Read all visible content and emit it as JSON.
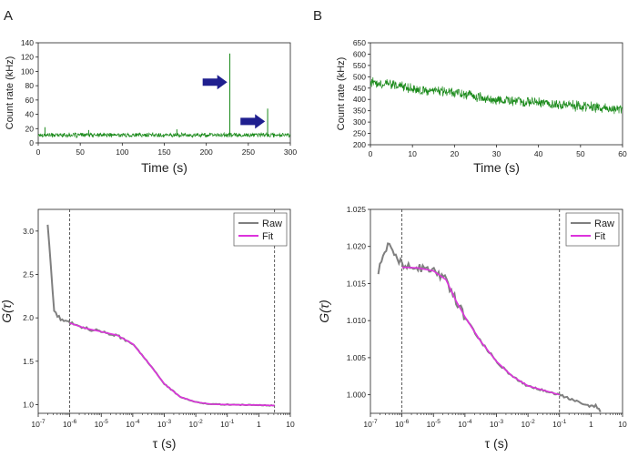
{
  "figure": {
    "panel_labels": [
      "A",
      "B"
    ]
  },
  "chart_data": [
    {
      "id": "A-top",
      "type": "line",
      "xlabel": "Time (s)",
      "ylabel": "Count rate (kHz)",
      "xlim": [
        0,
        300
      ],
      "ylim": [
        0,
        140
      ],
      "xticks": [
        0,
        50,
        100,
        150,
        200,
        250,
        300
      ],
      "yticks": [
        0,
        20,
        40,
        60,
        80,
        100,
        120,
        140
      ],
      "series": [
        {
          "name": "count rate",
          "color": "#1a8a1a",
          "baseline": 11,
          "noise_amplitude": 3,
          "spikes": [
            {
              "t": 8,
              "value": 22
            },
            {
              "t": 60,
              "value": 18
            },
            {
              "t": 165,
              "value": 19
            },
            {
              "t": 228,
              "value": 125
            },
            {
              "t": 273,
              "value": 48
            }
          ]
        }
      ],
      "annotations": [
        {
          "type": "arrow",
          "color": "#1f1f8f",
          "points_to": {
            "t": 226,
            "value": 85
          }
        },
        {
          "type": "arrow",
          "color": "#1f1f8f",
          "points_to": {
            "t": 271,
            "value": 30
          }
        }
      ]
    },
    {
      "id": "B-top",
      "type": "line",
      "xlabel": "Time (s)",
      "ylabel": "Count rate (kHz)",
      "xlim": [
        0,
        60
      ],
      "ylim": [
        200,
        650
      ],
      "xticks": [
        0,
        10,
        20,
        30,
        40,
        50,
        60
      ],
      "yticks": [
        200,
        250,
        300,
        350,
        400,
        450,
        500,
        550,
        600,
        650
      ],
      "series": [
        {
          "name": "count rate",
          "color": "#1a8a1a",
          "trend": [
            [
              0,
              475
            ],
            [
              5,
              470
            ],
            [
              9,
              450
            ],
            [
              12,
              440
            ],
            [
              20,
              430
            ],
            [
              30,
              400
            ],
            [
              40,
              385
            ],
            [
              50,
              370
            ],
            [
              60,
              355
            ]
          ],
          "noise_amplitude": 22
        }
      ]
    },
    {
      "id": "A-bottom",
      "type": "line",
      "x_scale": "log",
      "xlabel": "τ (s)",
      "ylabel": "G(τ)",
      "xlim_log10": [
        -7,
        1
      ],
      "ylim": [
        0.9,
        3.25
      ],
      "xtick_exponents": [
        -7,
        -6,
        -5,
        -4,
        -3,
        -2,
        -1,
        0,
        1
      ],
      "xtick_labels": [
        "10",
        "10",
        "10",
        "10",
        "10",
        "10",
        "10",
        "1",
        "10"
      ],
      "xtick_superscripts": [
        "-7",
        "-6",
        "-5",
        "-4",
        "-3",
        "-2",
        "-1",
        "",
        ""
      ],
      "yticks": [
        1.0,
        1.5,
        2.0,
        2.5,
        3.0
      ],
      "ytick_labels": [
        "1.0",
        "1.5",
        "2.0",
        "2.5",
        "3.0"
      ],
      "vlines_log10": [
        -6,
        0.5
      ],
      "legend": {
        "position": "top-right",
        "entries": [
          "Raw",
          "Fit"
        ]
      },
      "series": [
        {
          "name": "Raw",
          "color": "#7f7f7f",
          "points": [
            [
              -6.7,
              3.08
            ],
            [
              -6.5,
              2.1
            ],
            [
              -6.4,
              2.03
            ],
            [
              -6.25,
              1.97
            ],
            [
              -6.0,
              1.95
            ],
            [
              -5.75,
              1.92
            ],
            [
              -5.5,
              1.88
            ],
            [
              -5.0,
              1.84
            ],
            [
              -4.5,
              1.8
            ],
            [
              -4.0,
              1.7
            ],
            [
              -3.5,
              1.48
            ],
            [
              -3.0,
              1.24
            ],
            [
              -2.5,
              1.09
            ],
            [
              -2.0,
              1.03
            ],
            [
              -1.5,
              1.005
            ],
            [
              -1.0,
              1.0
            ],
            [
              0.0,
              0.995
            ],
            [
              0.5,
              0.99
            ]
          ],
          "noise_amplitude": 0.012
        },
        {
          "name": "Fit",
          "color": "#dd33dd",
          "points": [
            [
              -6.0,
              1.94
            ],
            [
              -5.5,
              1.88
            ],
            [
              -5.0,
              1.84
            ],
            [
              -4.5,
              1.8
            ],
            [
              -4.0,
              1.7
            ],
            [
              -3.5,
              1.48
            ],
            [
              -3.0,
              1.24
            ],
            [
              -2.5,
              1.09
            ],
            [
              -2.0,
              1.03
            ],
            [
              -1.5,
              1.005
            ],
            [
              -1.0,
              1.0
            ],
            [
              0.0,
              0.995
            ],
            [
              0.5,
              0.99
            ]
          ]
        }
      ]
    },
    {
      "id": "B-bottom",
      "type": "line",
      "x_scale": "log",
      "xlabel": "τ (s)",
      "ylabel": "G(τ)",
      "xlim_log10": [
        -7,
        1
      ],
      "ylim": [
        0.9975,
        1.025
      ],
      "xtick_exponents": [
        -7,
        -6,
        -5,
        -4,
        -3,
        -2,
        -1,
        0,
        1
      ],
      "xtick_labels": [
        "10",
        "10",
        "10",
        "10",
        "10",
        "10",
        "10",
        "1",
        "10"
      ],
      "xtick_superscripts": [
        "-7",
        "-6",
        "-5",
        "-4",
        "-3",
        "-2",
        "-1",
        "",
        ""
      ],
      "yticks": [
        1.0,
        1.005,
        1.01,
        1.015,
        1.02,
        1.025
      ],
      "ytick_labels": [
        "1.000",
        "1.005",
        "1.010",
        "1.015",
        "1.020",
        "1.025"
      ],
      "vlines_log10": [
        -6,
        -1
      ],
      "legend": {
        "position": "top-right",
        "entries": [
          "Raw",
          "Fit"
        ]
      },
      "series": [
        {
          "name": "Raw",
          "color": "#7f7f7f",
          "points": [
            [
              -6.75,
              1.0165
            ],
            [
              -6.45,
              1.0202
            ],
            [
              -6.2,
              1.0188
            ],
            [
              -6.0,
              1.0175
            ],
            [
              -5.5,
              1.0172
            ],
            [
              -5.0,
              1.0168
            ],
            [
              -4.6,
              1.0155
            ],
            [
              -4.3,
              1.0128
            ],
            [
              -4.0,
              1.0105
            ],
            [
              -3.5,
              1.0072
            ],
            [
              -3.0,
              1.0045
            ],
            [
              -2.5,
              1.0025
            ],
            [
              -2.0,
              1.0012
            ],
            [
              -1.5,
              1.0006
            ],
            [
              -1.0,
              1.0
            ],
            [
              -0.7,
              0.9995
            ],
            [
              -0.4,
              0.999
            ],
            [
              -0.1,
              0.9985
            ],
            [
              0.15,
              0.9985
            ],
            [
              0.3,
              0.9978
            ]
          ],
          "noise_amplitude": 0.0004
        },
        {
          "name": "Fit",
          "color": "#dd33dd",
          "points": [
            [
              -6.0,
              1.0172
            ],
            [
              -5.5,
              1.0171
            ],
            [
              -5.0,
              1.0167
            ],
            [
              -4.6,
              1.0155
            ],
            [
              -4.3,
              1.0128
            ],
            [
              -4.0,
              1.0105
            ],
            [
              -3.5,
              1.0072
            ],
            [
              -3.0,
              1.0045
            ],
            [
              -2.5,
              1.0025
            ],
            [
              -2.0,
              1.0012
            ],
            [
              -1.5,
              1.0006
            ],
            [
              -1.0,
              1.0
            ]
          ]
        }
      ]
    }
  ]
}
